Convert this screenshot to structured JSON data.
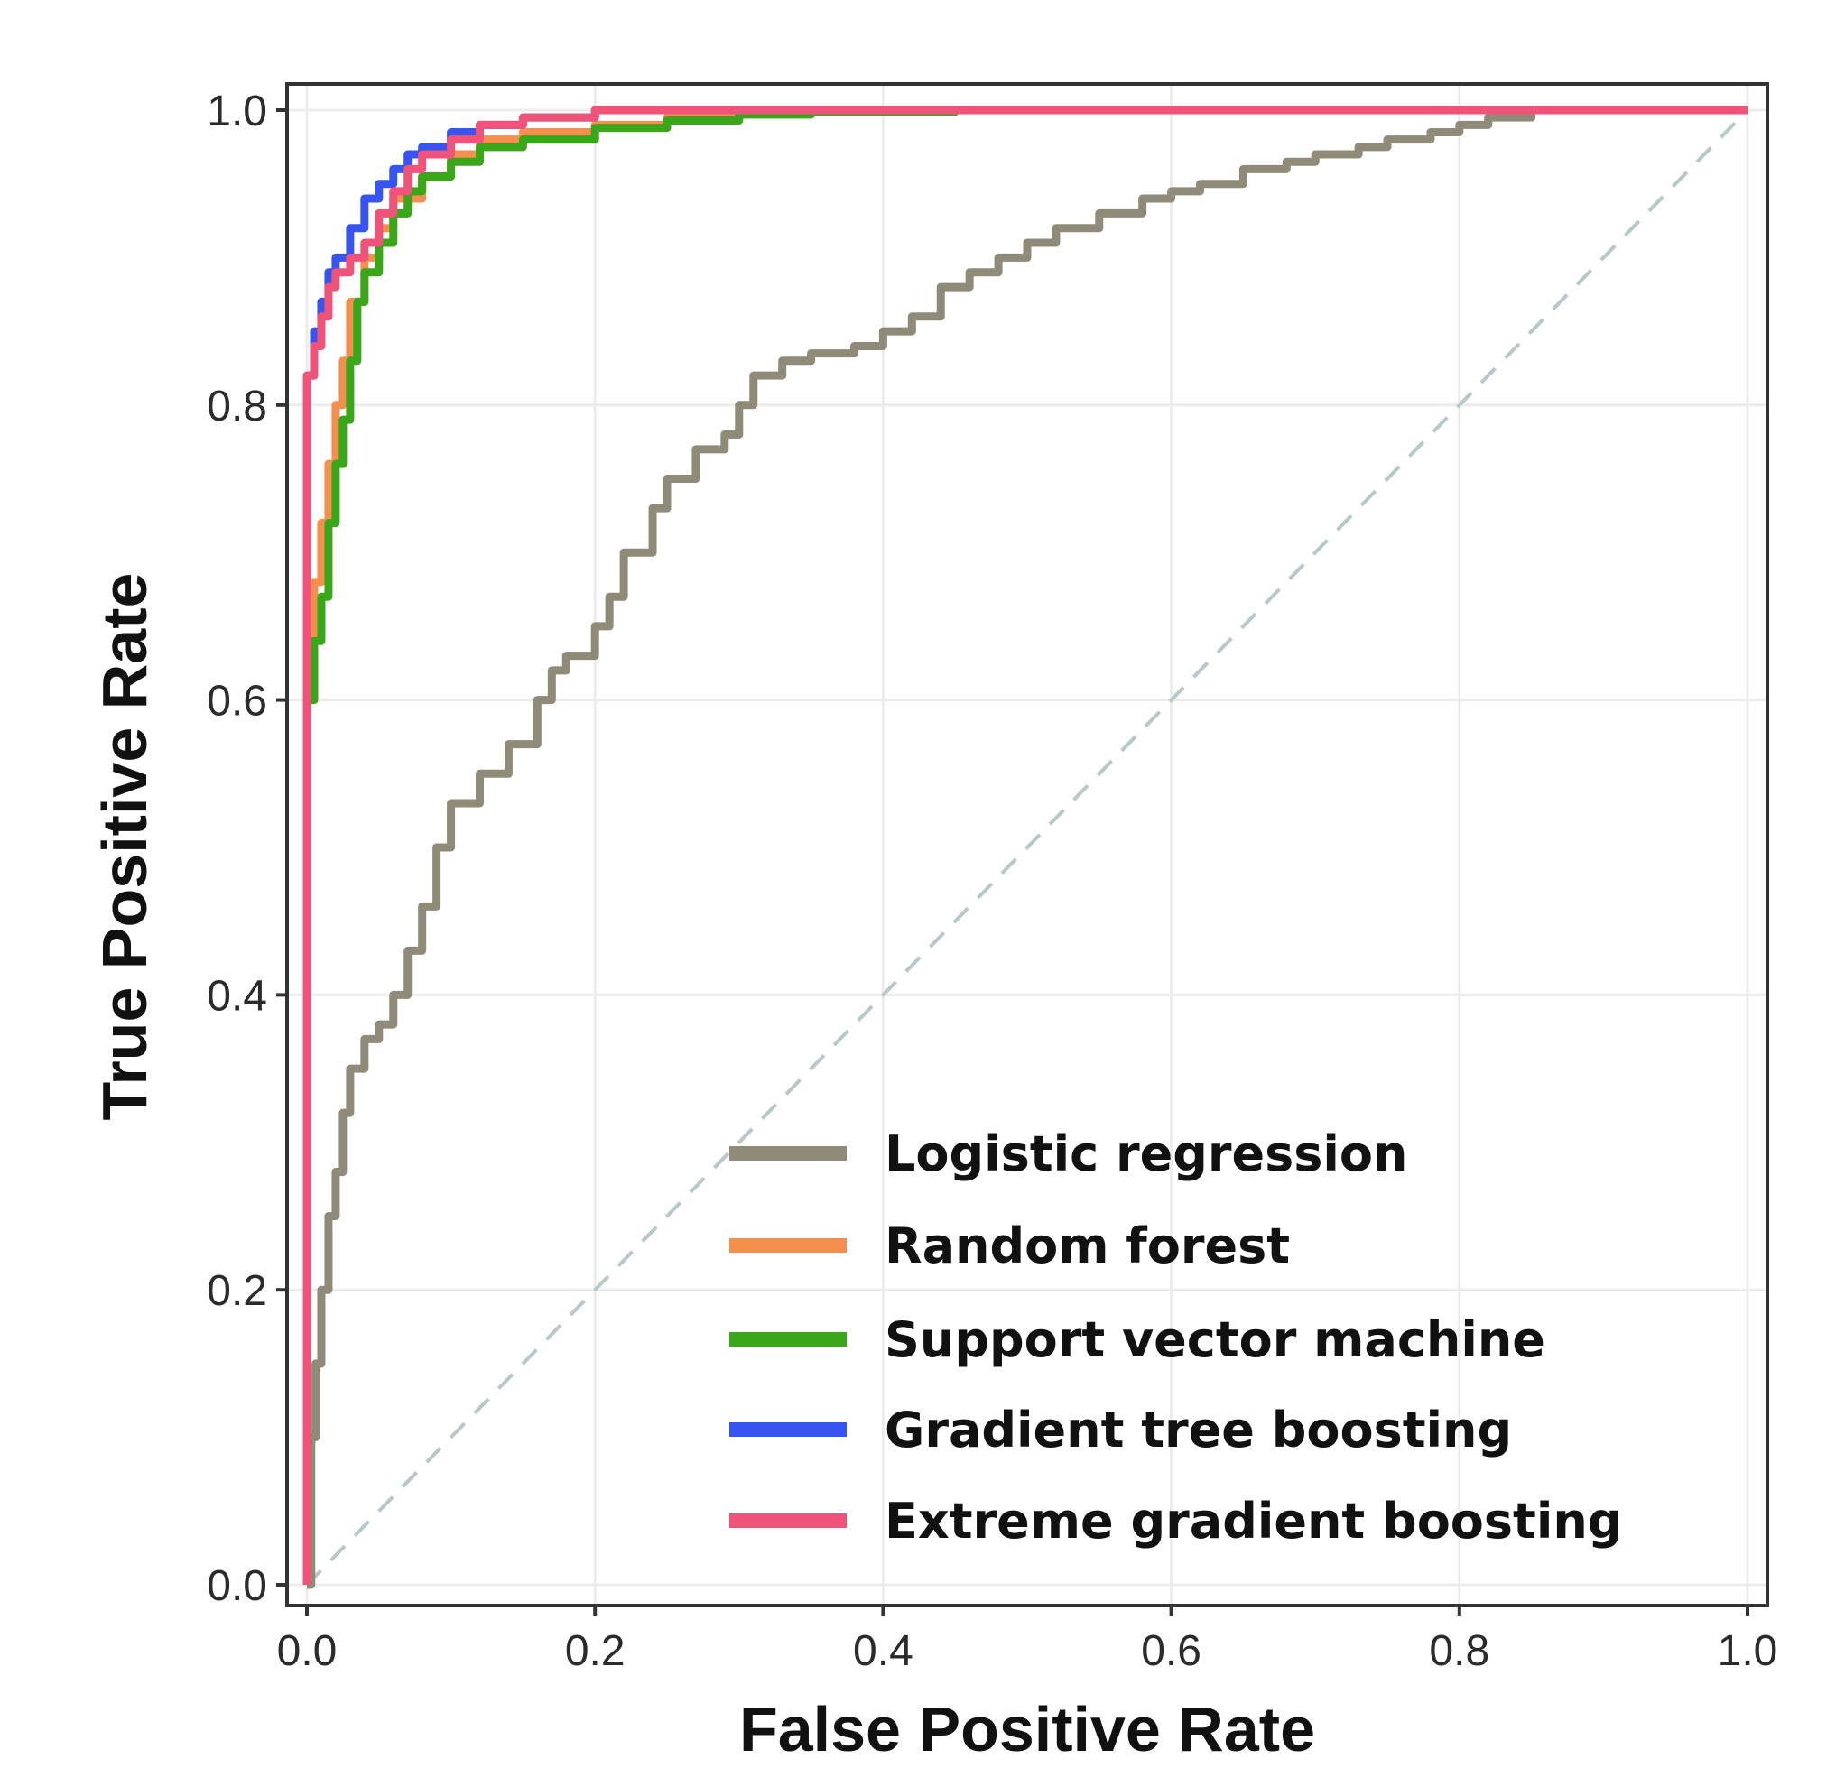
{
  "chart_data": {
    "type": "line",
    "xlabel": "False Positive Rate",
    "ylabel": "True Positive Rate",
    "xlim": [
      0.0,
      1.0
    ],
    "ylim": [
      0.0,
      1.0
    ],
    "x_ticks": [
      "0.0",
      "0.2",
      "0.4",
      "0.6",
      "0.8",
      "1.0"
    ],
    "y_ticks": [
      "0.0",
      "0.2",
      "0.4",
      "0.6",
      "0.8",
      "1.0"
    ],
    "grid": true,
    "legend_position": "bottom-right",
    "reference_line": {
      "style": "dashed",
      "color": "#b8c8c8",
      "x": [
        0,
        1
      ],
      "y": [
        0,
        1
      ]
    },
    "series": [
      {
        "name": "Logistic regression",
        "color": "#8f8b78",
        "x": [
          0.0,
          0.003,
          0.006,
          0.01,
          0.015,
          0.02,
          0.025,
          0.03,
          0.04,
          0.05,
          0.06,
          0.07,
          0.08,
          0.09,
          0.1,
          0.12,
          0.14,
          0.16,
          0.17,
          0.18,
          0.2,
          0.21,
          0.22,
          0.24,
          0.25,
          0.27,
          0.29,
          0.3,
          0.31,
          0.33,
          0.35,
          0.38,
          0.4,
          0.42,
          0.44,
          0.46,
          0.48,
          0.5,
          0.52,
          0.55,
          0.58,
          0.6,
          0.62,
          0.65,
          0.68,
          0.7,
          0.73,
          0.75,
          0.78,
          0.8,
          0.82,
          0.85,
          0.9,
          1.0
        ],
        "y": [
          0.0,
          0.1,
          0.15,
          0.2,
          0.25,
          0.28,
          0.32,
          0.35,
          0.37,
          0.38,
          0.4,
          0.43,
          0.46,
          0.5,
          0.53,
          0.55,
          0.57,
          0.6,
          0.62,
          0.63,
          0.65,
          0.67,
          0.7,
          0.73,
          0.75,
          0.77,
          0.78,
          0.8,
          0.82,
          0.83,
          0.835,
          0.84,
          0.85,
          0.86,
          0.88,
          0.89,
          0.9,
          0.91,
          0.92,
          0.93,
          0.94,
          0.945,
          0.95,
          0.96,
          0.965,
          0.97,
          0.975,
          0.98,
          0.985,
          0.99,
          0.995,
          1.0,
          1.0,
          1.0
        ]
      },
      {
        "name": "Random forest",
        "color": "#f58f4f",
        "x": [
          0.0,
          0.0,
          0.005,
          0.01,
          0.015,
          0.02,
          0.025,
          0.03,
          0.04,
          0.05,
          0.06,
          0.08,
          0.1,
          0.12,
          0.15,
          0.2,
          0.25,
          0.3,
          0.35,
          1.0
        ],
        "y": [
          0.0,
          0.6,
          0.68,
          0.72,
          0.76,
          0.8,
          0.83,
          0.87,
          0.9,
          0.92,
          0.94,
          0.955,
          0.97,
          0.98,
          0.985,
          0.99,
          0.995,
          0.998,
          1.0,
          1.0
        ]
      },
      {
        "name": "Support vector machine",
        "color": "#3aa619",
        "x": [
          0.0,
          0.0,
          0.005,
          0.01,
          0.015,
          0.02,
          0.025,
          0.03,
          0.035,
          0.04,
          0.05,
          0.06,
          0.07,
          0.08,
          0.1,
          0.12,
          0.15,
          0.2,
          0.25,
          0.3,
          0.35,
          0.45,
          1.0
        ],
        "y": [
          0.0,
          0.6,
          0.64,
          0.67,
          0.72,
          0.76,
          0.79,
          0.83,
          0.87,
          0.89,
          0.91,
          0.93,
          0.945,
          0.955,
          0.965,
          0.975,
          0.98,
          0.988,
          0.993,
          0.997,
          0.999,
          1.0,
          1.0
        ]
      },
      {
        "name": "Gradient tree boosting",
        "color": "#3554f0",
        "x": [
          0.0,
          0.0,
          0.005,
          0.01,
          0.015,
          0.02,
          0.03,
          0.04,
          0.05,
          0.06,
          0.07,
          0.08,
          0.1,
          0.12,
          0.15,
          0.2,
          0.3,
          1.0
        ],
        "y": [
          0.0,
          0.82,
          0.85,
          0.87,
          0.89,
          0.9,
          0.92,
          0.94,
          0.95,
          0.96,
          0.97,
          0.975,
          0.985,
          0.99,
          0.995,
          1.0,
          1.0,
          1.0
        ]
      },
      {
        "name": "Extreme gradient boosting",
        "color": "#ef5379",
        "x": [
          0.0,
          0.0,
          0.005,
          0.01,
          0.015,
          0.02,
          0.03,
          0.04,
          0.05,
          0.06,
          0.07,
          0.08,
          0.1,
          0.12,
          0.15,
          0.2,
          0.3,
          1.0
        ],
        "y": [
          0.0,
          0.82,
          0.84,
          0.86,
          0.88,
          0.89,
          0.9,
          0.91,
          0.93,
          0.945,
          0.96,
          0.97,
          0.98,
          0.99,
          0.995,
          1.0,
          1.0,
          1.0
        ]
      }
    ]
  }
}
